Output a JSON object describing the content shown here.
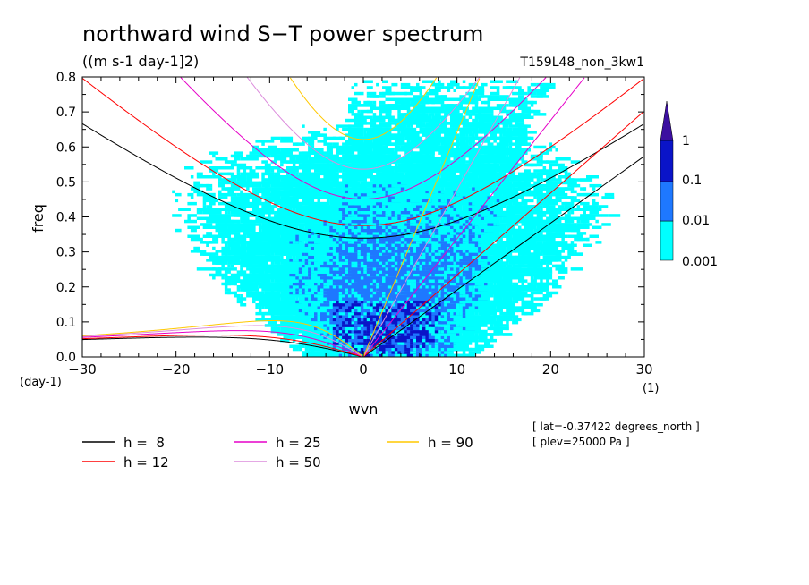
{
  "chart_data": {
    "type": "heatmap",
    "title": "northward wind S−T power spectrum",
    "units": "((m s-1 day-1]2)",
    "run_label": "T159L48_non_3kw1",
    "xlabel": "wvn",
    "x_unit": "(1)",
    "ylabel": "freq",
    "y_unit": "(day-1)",
    "xlim": [
      -30,
      30
    ],
    "ylim": [
      0,
      0.8
    ],
    "x_ticks": [
      "−30",
      "−20",
      "−10",
      "0",
      "10",
      "20",
      "30"
    ],
    "y_ticks": [
      "0.0",
      "0.1",
      "0.2",
      "0.3",
      "0.4",
      "0.5",
      "0.6",
      "0.7",
      "0.8"
    ],
    "grid": false,
    "colorbar": {
      "labels": [
        "0.001",
        "0.01",
        "0.1",
        "1"
      ],
      "colors": [
        "#00ffff",
        "#1e78ff",
        "#0a14c8",
        "#3c0fa0"
      ],
      "extend": "max"
    },
    "power_regions": [
      {
        "level": "0.001",
        "color": "#00ffff",
        "x_range": [
          -21,
          27
        ],
        "freq_range": [
          0.0,
          0.78
        ]
      },
      {
        "level": "0.01",
        "color": "#1e78ff",
        "x_range": [
          -9,
          13
        ],
        "freq_range": [
          0.0,
          0.5
        ]
      },
      {
        "level": "0.1",
        "color": "#0a14c8",
        "x_range": [
          -6,
          8
        ],
        "freq_range": [
          0.0,
          0.17
        ]
      }
    ],
    "dispersion_curves": [
      {
        "name": "h =  8",
        "h": 8,
        "color": "#000000"
      },
      {
        "name": "h = 12",
        "h": 12,
        "color": "#ff0000"
      },
      {
        "name": "h = 25",
        "h": 25,
        "color": "#e600c8"
      },
      {
        "name": "h = 50",
        "h": 50,
        "color": "#dc8cdc"
      },
      {
        "name": "h = 90",
        "h": 90,
        "color": "#ffc800"
      }
    ],
    "annotations": [
      "[ lat=-0.37422 degrees_north ]",
      "[ plev=25000 Pa ]"
    ]
  }
}
